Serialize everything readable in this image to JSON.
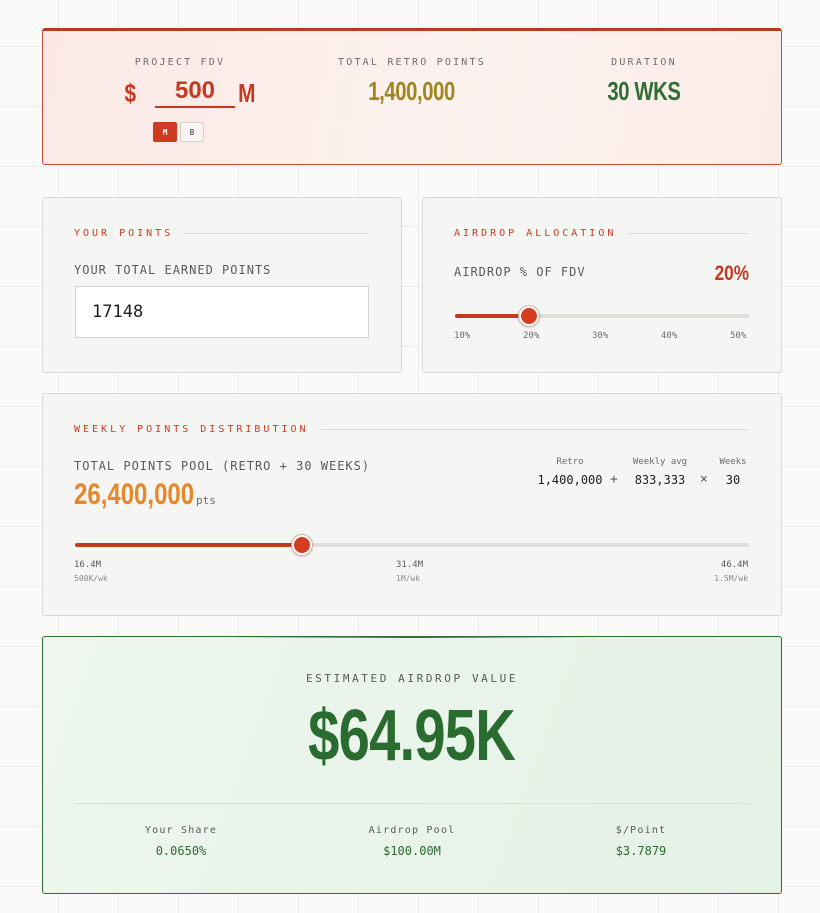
{
  "hero": {
    "fdv_label": "PROJECT FDV",
    "fdv_sign": "$",
    "fdv_value": "500",
    "fdv_suffix": "M",
    "unit_options": [
      "M",
      "B"
    ],
    "unit_selected": "M",
    "retro_label": "TOTAL RETRO POINTS",
    "retro_value": "1,400,000",
    "duration_label": "DURATION",
    "duration_value": "30 WKS"
  },
  "your_points": {
    "title": "YOUR POINTS",
    "field_label": "YOUR TOTAL EARNED POINTS",
    "value": "17148"
  },
  "airdrop": {
    "title": "AIRDROP ALLOCATION",
    "field_label": "AIRDROP % OF FDV",
    "value_text": "20%",
    "slider_value": 20,
    "slider_min": 10,
    "slider_max": 50,
    "ticks": [
      "10%",
      "20%",
      "30%",
      "40%",
      "50%"
    ]
  },
  "weekly": {
    "title": "WEEKLY POINTS DISTRIBUTION",
    "pool_label": "TOTAL POINTS POOL (RETRO + 30 WEEKS)",
    "pool_value": "26,400,000",
    "pool_unit": "pts",
    "formula": {
      "retro_label": "Retro",
      "retro_value": "1,400,000",
      "plus": "+",
      "avg_label": "Weekly avg",
      "avg_value": "833,333",
      "times": "×",
      "weeks_label": "Weeks",
      "weeks_value": "30"
    },
    "slider_fraction": 0.337,
    "ticks": [
      {
        "value": "16.4M",
        "rate": "500K/wk"
      },
      {
        "value": "31.4M",
        "rate": "1M/wk"
      },
      {
        "value": "46.4M",
        "rate": "1.5M/wk"
      }
    ]
  },
  "result": {
    "label": "ESTIMATED AIRDROP VALUE",
    "value": "$64.95K",
    "stats": [
      {
        "label": "Your Share",
        "value": "0.0650%"
      },
      {
        "label": "Airdrop Pool",
        "value": "$100.00M"
      },
      {
        "label": "$/Point",
        "value": "$3.7879"
      }
    ]
  },
  "colors": {
    "accent_red": "#c4391f",
    "retro_gold": "#a0841c",
    "duration_green": "#2f6e35",
    "pool_orange": "#e6882a",
    "result_green": "#2a6b30"
  }
}
